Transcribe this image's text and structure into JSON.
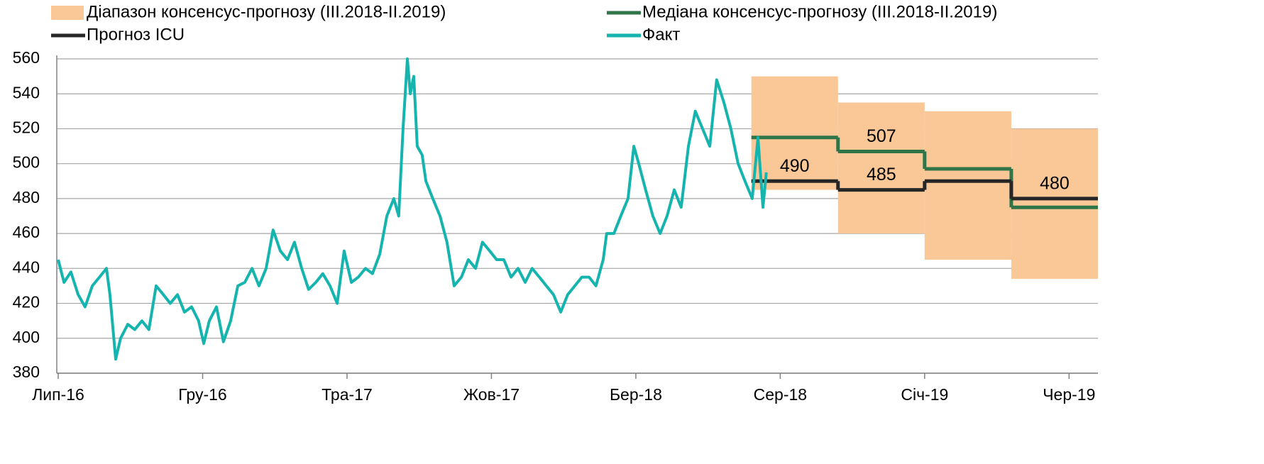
{
  "chart_data": {
    "type": "line",
    "xlim": [
      -0.05,
      36
    ],
    "ylim": [
      380,
      560
    ],
    "xticks": [
      {
        "value": 0,
        "label": "Лип-16"
      },
      {
        "value": 5,
        "label": "Гру-16"
      },
      {
        "value": 10,
        "label": "Тра-17"
      },
      {
        "value": 15,
        "label": "Жов-17"
      },
      {
        "value": 20,
        "label": "Бер-18"
      },
      {
        "value": 25,
        "label": "Сер-18"
      },
      {
        "value": 30,
        "label": "Січ-19"
      },
      {
        "value": 35,
        "label": "Чер-19"
      }
    ],
    "yticks": [
      380,
      400,
      420,
      440,
      460,
      480,
      500,
      520,
      540,
      560
    ],
    "grid": true,
    "series": [
      {
        "name": "Діапазон консенсус-прогнозу (ІІІ.2018-ІІ.2019)",
        "type": "band",
        "color": "#fac796",
        "x": [
          24,
          27,
          30,
          33
        ],
        "lower": [
          485,
          460,
          445,
          434
        ],
        "upper": [
          550,
          535,
          530,
          520
        ]
      },
      {
        "name": "Медіана консенсус-прогнозу (ІІІ.2018-ІІ.2019)",
        "type": "step",
        "color": "#2f7548",
        "x": [
          24,
          27,
          30,
          33
        ],
        "values": [
          515,
          507,
          497,
          475
        ],
        "labeled": [
          1
        ]
      },
      {
        "name": "Прогноз ICU",
        "type": "step",
        "color": "#262626",
        "x": [
          24,
          27,
          30,
          33
        ],
        "values": [
          490,
          485,
          490,
          480
        ],
        "labeled": [
          0,
          1,
          3
        ]
      },
      {
        "name": "Факт",
        "type": "line",
        "color": "#16b4ae",
        "x": [
          0,
          0.2,
          0.44,
          0.69,
          0.93,
          1.18,
          1.43,
          1.67,
          1.79,
          1.99,
          2.16,
          2.41,
          2.65,
          2.9,
          3.14,
          3.39,
          3.64,
          3.88,
          4.13,
          4.37,
          4.62,
          4.86,
          5.04,
          5.23,
          5.48,
          5.72,
          5.97,
          6.22,
          6.46,
          6.71,
          6.95,
          7.2,
          7.44,
          7.69,
          7.94,
          8.18,
          8.43,
          8.67,
          8.92,
          9.16,
          9.41,
          9.66,
          9.9,
          10.15,
          10.39,
          10.64,
          10.88,
          11.13,
          11.38,
          11.62,
          11.79,
          11.94,
          12.09,
          12.19,
          12.31,
          12.43,
          12.6,
          12.73,
          12.97,
          13.22,
          13.46,
          13.71,
          13.96,
          14.2,
          14.45,
          14.69,
          14.94,
          15.18,
          15.43,
          15.68,
          15.92,
          16.17,
          16.41,
          16.66,
          16.9,
          17.15,
          17.4,
          17.64,
          17.89,
          18.13,
          18.38,
          18.62,
          18.87,
          18.99,
          19.24,
          19.48,
          19.73,
          19.93,
          20.1,
          20.34,
          20.59,
          20.84,
          21.08,
          21.33,
          21.57,
          21.82,
          22.06,
          22.31,
          22.56,
          22.8,
          23.05,
          23.29,
          23.54,
          23.78,
          24.03,
          24.23,
          24.4,
          24.52
        ],
        "values": [
          445,
          432,
          438,
          425,
          418,
          430,
          435,
          440,
          425,
          388,
          400,
          408,
          405,
          410,
          405,
          430,
          425,
          420,
          425,
          415,
          418,
          410,
          397,
          410,
          418,
          398,
          410,
          430,
          432,
          440,
          430,
          440,
          462,
          450,
          445,
          455,
          440,
          428,
          432,
          437,
          430,
          420,
          450,
          432,
          435,
          440,
          437,
          448,
          470,
          480,
          470,
          520,
          560,
          540,
          550,
          510,
          505,
          490,
          480,
          470,
          455,
          430,
          435,
          445,
          440,
          455,
          450,
          445,
          445,
          435,
          440,
          432,
          440,
          435,
          430,
          425,
          415,
          425,
          430,
          435,
          435,
          430,
          445,
          460,
          460,
          470,
          480,
          510,
          500,
          485,
          470,
          460,
          470,
          485,
          475,
          510,
          530,
          520,
          510,
          548,
          535,
          520,
          500,
          490,
          480,
          515,
          475,
          495
        ]
      }
    ]
  }
}
